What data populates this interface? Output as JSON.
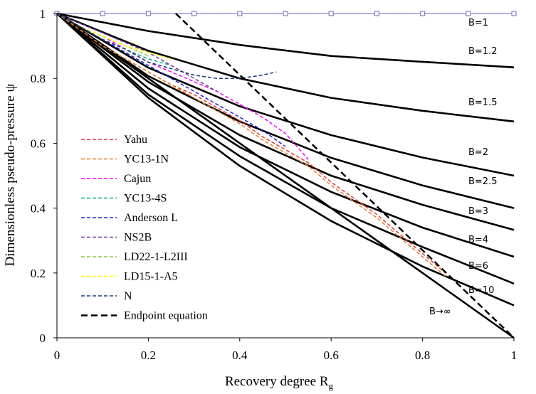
{
  "chart_data": {
    "type": "line",
    "title": "",
    "xlabel": "Recovery degree R",
    "xlabel_sub": "g",
    "ylabel": "Dimensionless pseudo-pressure ψ",
    "xlim": [
      0,
      1
    ],
    "ylim": [
      0,
      1
    ],
    "x_ticks": [
      "0",
      "0.2",
      "0.4",
      "0.6",
      "0.8",
      "1"
    ],
    "y_ticks": [
      "0",
      "0.2",
      "0.4",
      "0.6",
      "0.8",
      "1"
    ],
    "grid": false,
    "legend_position": "left-bottom inside",
    "type_curves": [
      {
        "label": "B=1",
        "B": 1,
        "style": "markers",
        "color": "#8e7cc3",
        "x": [
          0,
          0.1,
          0.2,
          0.3,
          0.4,
          0.5,
          0.6,
          0.7,
          0.8,
          0.9,
          1.0
        ],
        "y": [
          1,
          1,
          1,
          1,
          1,
          1,
          1,
          1,
          1,
          1,
          1
        ]
      },
      {
        "label": "B=1.2",
        "B": 1.2,
        "x": [
          0,
          0.2,
          0.4,
          0.6,
          0.8,
          1.0
        ],
        "y": [
          1,
          0.946,
          0.903,
          0.869,
          0.851,
          0.834
        ]
      },
      {
        "label": "B=1.5",
        "B": 1.5,
        "x": [
          0,
          0.2,
          0.4,
          0.6,
          0.8,
          1.0
        ],
        "y": [
          1,
          0.885,
          0.8,
          0.74,
          0.7,
          0.667
        ]
      },
      {
        "label": "B=2",
        "B": 2,
        "x": [
          0,
          0.2,
          0.4,
          0.6,
          0.8,
          1.0
        ],
        "y": [
          1,
          0.833,
          0.714,
          0.625,
          0.556,
          0.5
        ]
      },
      {
        "label": "B=2.5",
        "B": 2.5,
        "x": [
          0,
          0.2,
          0.4,
          0.6,
          0.8,
          1.0
        ],
        "y": [
          1,
          0.807,
          0.667,
          0.555,
          0.47,
          0.4
        ]
      },
      {
        "label": "B=3",
        "B": 3,
        "x": [
          0,
          0.2,
          0.4,
          0.6,
          0.8,
          1.0
        ],
        "y": [
          1,
          0.789,
          0.625,
          0.5,
          0.41,
          0.333
        ]
      },
      {
        "label": "B=4",
        "B": 4,
        "x": [
          0,
          0.2,
          0.4,
          0.6,
          0.8,
          1.0
        ],
        "y": [
          1,
          0.769,
          0.588,
          0.45,
          0.34,
          0.25
        ]
      },
      {
        "label": "B=6",
        "B": 6,
        "x": [
          0,
          0.2,
          0.4,
          0.6,
          0.8,
          1.0
        ],
        "y": [
          1,
          0.75,
          0.56,
          0.4,
          0.28,
          0.167
        ]
      },
      {
        "label": "B=10",
        "B": 10,
        "x": [
          0,
          0.2,
          0.4,
          0.6,
          0.8,
          1.0
        ],
        "y": [
          1,
          0.74,
          0.53,
          0.36,
          0.22,
          0.1
        ]
      },
      {
        "label": "B→∞",
        "B": "inf",
        "x": [
          0,
          1
        ],
        "y": [
          1,
          0
        ]
      }
    ],
    "series": [
      {
        "name": "Yahu",
        "color": "#e53935",
        "dash": true,
        "x": [
          0,
          0.05,
          0.1,
          0.15,
          0.2,
          0.25,
          0.3,
          0.35,
          0.4,
          0.45,
          0.5,
          0.55,
          0.6,
          0.65,
          0.7,
          0.75,
          0.8,
          0.85
        ],
        "y": [
          1,
          0.95,
          0.9,
          0.86,
          0.82,
          0.78,
          0.75,
          0.71,
          0.67,
          0.62,
          0.58,
          0.54,
          0.48,
          0.43,
          0.38,
          0.32,
          0.26,
          0.2
        ]
      },
      {
        "name": "YC13-1N",
        "color": "#e67e22",
        "dash": true,
        "x": [
          0,
          0.05,
          0.1,
          0.15,
          0.2,
          0.25,
          0.3,
          0.35,
          0.4,
          0.45,
          0.5,
          0.55,
          0.6,
          0.65,
          0.7,
          0.75,
          0.8,
          0.85
        ],
        "y": [
          1,
          0.95,
          0.9,
          0.86,
          0.82,
          0.78,
          0.74,
          0.7,
          0.66,
          0.61,
          0.57,
          0.53,
          0.47,
          0.42,
          0.37,
          0.31,
          0.25,
          0.19
        ]
      },
      {
        "name": "Cajun",
        "color": "#ff00ff",
        "dash": true,
        "x": [
          0,
          0.05,
          0.1,
          0.15,
          0.2,
          0.25,
          0.3,
          0.35,
          0.4,
          0.45,
          0.5,
          0.55
        ],
        "y": [
          1,
          0.96,
          0.93,
          0.89,
          0.85,
          0.82,
          0.79,
          0.76,
          0.72,
          0.68,
          0.63,
          0.55
        ]
      },
      {
        "name": "YC13-4S",
        "color": "#17a589",
        "dash": true,
        "x": [
          0,
          0.05,
          0.1,
          0.15,
          0.2,
          0.25
        ],
        "y": [
          1,
          0.96,
          0.92,
          0.89,
          0.86,
          0.84
        ]
      },
      {
        "name": "Anderson L",
        "color": "#1e22d6",
        "dash": true,
        "x": [
          0,
          0.05,
          0.1,
          0.15,
          0.2,
          0.25,
          0.3,
          0.35,
          0.4,
          0.45,
          0.5
        ],
        "y": [
          1,
          0.96,
          0.92,
          0.88,
          0.84,
          0.8,
          0.76,
          0.72,
          0.68,
          0.64,
          0.59
        ]
      },
      {
        "name": "NS2B",
        "color": "#7d3c98",
        "dash": true,
        "x": [
          0,
          0.05,
          0.1,
          0.15,
          0.2,
          0.25,
          0.3,
          0.35
        ],
        "y": [
          1,
          0.97,
          0.94,
          0.91,
          0.88,
          0.84,
          0.8,
          0.76
        ]
      },
      {
        "name": "LD22-1-L2III",
        "color": "#8bc34a",
        "dash": true,
        "x": [
          0,
          0.05,
          0.1,
          0.15,
          0.2
        ],
        "y": [
          1,
          0.96,
          0.93,
          0.9,
          0.87
        ]
      },
      {
        "name": "LD15-1-A5",
        "color": "#ffff00",
        "dash": true,
        "x": [
          0,
          0.05,
          0.1,
          0.15,
          0.2,
          0.25
        ],
        "y": [
          1,
          0.96,
          0.93,
          0.9,
          0.88,
          0.86
        ]
      },
      {
        "name": "N",
        "color": "#1a3a7a",
        "dash": true,
        "x": [
          0,
          0.05,
          0.1,
          0.15,
          0.2,
          0.25,
          0.3,
          0.35,
          0.4,
          0.45,
          0.48
        ],
        "y": [
          1,
          0.96,
          0.92,
          0.89,
          0.85,
          0.83,
          0.81,
          0.8,
          0.8,
          0.81,
          0.82
        ]
      },
      {
        "name": "Endpoint equation",
        "color": "#000000",
        "dash": true,
        "thick": true,
        "x": [
          0.26,
          1.0
        ],
        "y": [
          1.0,
          0.0
        ]
      }
    ]
  }
}
